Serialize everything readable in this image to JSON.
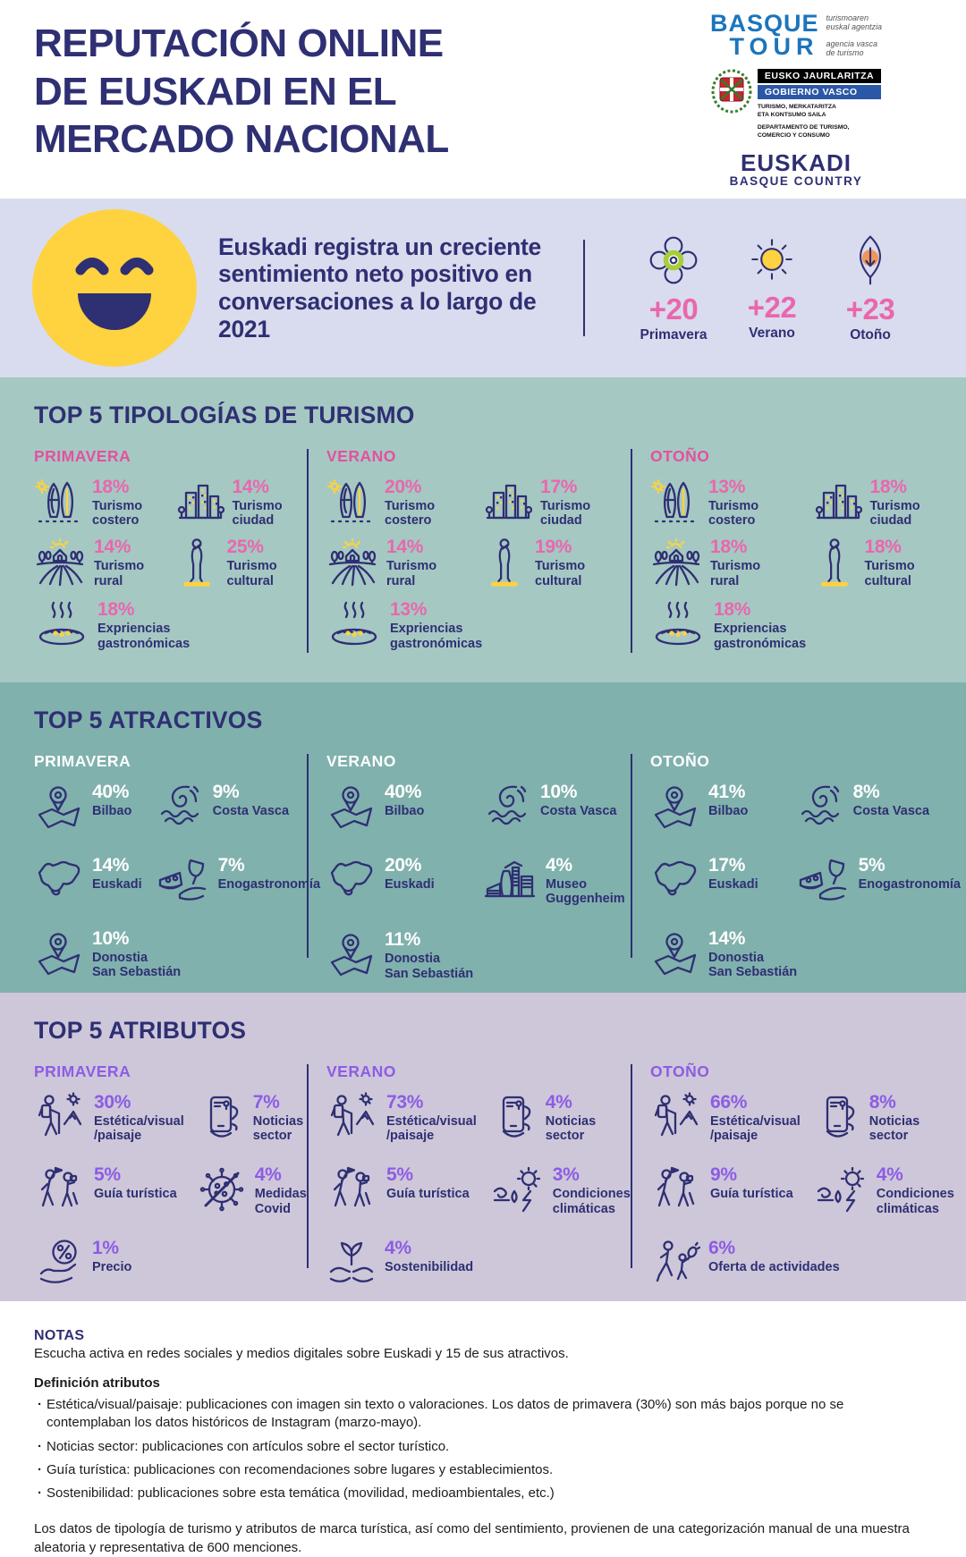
{
  "header": {
    "title": "REPUTACIÓN ONLINE\nDE EUSKADI EN EL\nMERCADO NACIONAL",
    "logos": {
      "basque_tour": {
        "line1": "BASQUE",
        "line2": "TOUR",
        "tagline_eu": "turismoaren\neuskal agentzia",
        "tagline_es": "agencia vasca\nde turismo"
      },
      "gobierno_vasco": {
        "bar1": "EUSKO JAURLARITZA",
        "bar2": "GOBIERNO VASCO",
        "dept_eu": "TURISMO, MERKATARITZA\nETA KONTSUMO SAILA",
        "dept_es": "DEPARTAMENTO DE TURISMO,\nCOMERCIO Y CONSUMO"
      },
      "euskadi": {
        "line1": "EUSKADI",
        "line2": "BASQUE COUNTRY"
      }
    }
  },
  "sentiment": {
    "message": "Euskadi registra un creciente sentimiento neto positivo en conversaciones a lo largo de 2021",
    "seasons": [
      {
        "icon": "flower-icon",
        "value": "+20",
        "label": "Primavera"
      },
      {
        "icon": "sun-icon",
        "value": "+22",
        "label": "Verano"
      },
      {
        "icon": "leaf-icon",
        "value": "+23",
        "label": "Otoño"
      }
    ]
  },
  "sections": [
    {
      "id": "tipologias",
      "title": "TOP 5 TIPOLOGÍAS DE TURISMO",
      "theme": "light-teal",
      "columns": [
        {
          "season": "PRIMAVERA",
          "items": [
            {
              "value": "18%",
              "label": "Turismo\ncostero",
              "icon": "surf-icon",
              "side": "left"
            },
            {
              "value": "14%",
              "label": "Turismo\nciudad",
              "icon": "city-icon",
              "side": "left"
            },
            {
              "value": "14%",
              "label": "Turismo\nrural",
              "icon": "farm-icon",
              "side": "left"
            },
            {
              "value": "25%",
              "label": "Turismo\ncultural",
              "icon": "statue-icon",
              "side": "left"
            },
            {
              "value": "18%",
              "label": "Expriencias\ngastronómicas",
              "icon": "gastronomy-icon",
              "side": "left",
              "wide": true
            }
          ]
        },
        {
          "season": "VERANO",
          "items": [
            {
              "value": "20%",
              "label": "Turismo\ncostero",
              "icon": "surf-icon",
              "side": "left"
            },
            {
              "value": "17%",
              "label": "Turismo\nciudad",
              "icon": "city-icon",
              "side": "left"
            },
            {
              "value": "14%",
              "label": "Turismo\nrural",
              "icon": "farm-icon",
              "side": "left"
            },
            {
              "value": "19%",
              "label": "Turismo\ncultural",
              "icon": "statue-icon",
              "side": "left"
            },
            {
              "value": "13%",
              "label": "Expriencias\ngastronómicas",
              "icon": "gastronomy-icon",
              "side": "left",
              "wide": true
            }
          ]
        },
        {
          "season": "OTOÑO",
          "items": [
            {
              "value": "13%",
              "label": "Turismo\ncostero",
              "icon": "surf-icon",
              "side": "left"
            },
            {
              "value": "18%",
              "label": "Turismo\nciudad",
              "icon": "city-icon",
              "side": "left"
            },
            {
              "value": "18%",
              "label": "Turismo\nrural",
              "icon": "farm-icon",
              "side": "left"
            },
            {
              "value": "18%",
              "label": "Turismo\ncultural",
              "icon": "statue-icon",
              "side": "left"
            },
            {
              "value": "18%",
              "label": "Expriencias\ngastronómicas",
              "icon": "gastronomy-icon",
              "side": "left",
              "wide": true
            }
          ]
        }
      ]
    },
    {
      "id": "atractivos",
      "title": "TOP 5 ATRACTIVOS",
      "theme": "dark-teal",
      "columns": [
        {
          "season": "PRIMAVERA",
          "items": [
            {
              "value": "40%",
              "label": "Bilbao",
              "icon": "map-pin-icon",
              "side": "left"
            },
            {
              "value": "9%",
              "label": "Costa Vasca",
              "icon": "wave-icon",
              "side": "right"
            },
            {
              "value": "14%",
              "label": "Euskadi",
              "icon": "euskadi-map-icon",
              "side": "left"
            },
            {
              "value": "7%",
              "label": "Enogastronomía",
              "icon": "wine-cheese-icon",
              "side": "right"
            },
            {
              "value": "10%",
              "label": "Donostia\nSan Sebastián",
              "icon": "map-pin-icon",
              "side": "left",
              "wide": true
            }
          ]
        },
        {
          "season": "VERANO",
          "items": [
            {
              "value": "40%",
              "label": "Bilbao",
              "icon": "map-pin-icon",
              "side": "left"
            },
            {
              "value": "10%",
              "label": "Costa Vasca",
              "icon": "wave-icon",
              "side": "right"
            },
            {
              "value": "20%",
              "label": "Euskadi",
              "icon": "euskadi-map-icon",
              "side": "left"
            },
            {
              "value": "4%",
              "label": "Museo\nGuggenheim",
              "icon": "guggenheim-icon",
              "side": "right"
            },
            {
              "value": "11%",
              "label": "Donostia\nSan Sebastián",
              "icon": "map-pin-icon",
              "side": "left",
              "wide": true
            }
          ]
        },
        {
          "season": "OTOÑO",
          "items": [
            {
              "value": "41%",
              "label": "Bilbao",
              "icon": "map-pin-icon",
              "side": "left"
            },
            {
              "value": "8%",
              "label": "Costa Vasca",
              "icon": "wave-icon",
              "side": "right"
            },
            {
              "value": "17%",
              "label": "Euskadi",
              "icon": "euskadi-map-icon",
              "side": "left"
            },
            {
              "value": "5%",
              "label": "Enogastronomía",
              "icon": "wine-cheese-icon",
              "side": "right"
            },
            {
              "value": "14%",
              "label": "Donostia\nSan Sebastián",
              "icon": "map-pin-icon",
              "side": "left",
              "wide": true
            }
          ]
        }
      ]
    },
    {
      "id": "atributos",
      "title": "TOP 5 ATRIBUTOS",
      "theme": "purple",
      "columns": [
        {
          "season": "PRIMAVERA",
          "items": [
            {
              "value": "30%",
              "label": "Estética/visual\n/paisaje",
              "icon": "hiker-icon",
              "side": "right"
            },
            {
              "value": "7%",
              "label": "Noticias sector",
              "icon": "phone-icon",
              "side": "right"
            },
            {
              "value": "5%",
              "label": "Guía turística",
              "icon": "guide-icon",
              "side": "right"
            },
            {
              "value": "4%",
              "label": "Medidas Covid",
              "icon": "covid-icon",
              "side": "right"
            },
            {
              "value": "1%",
              "label": "Precio",
              "icon": "price-icon",
              "side": "right",
              "wide": true
            }
          ]
        },
        {
          "season": "VERANO",
          "items": [
            {
              "value": "73%",
              "label": "Estética/visual\n/paisaje",
              "icon": "hiker-icon",
              "side": "right"
            },
            {
              "value": "4%",
              "label": "Noticias sector",
              "icon": "phone-icon",
              "side": "right"
            },
            {
              "value": "5%",
              "label": "Guía turística",
              "icon": "guide-icon",
              "side": "right"
            },
            {
              "value": "3%",
              "label": "Condiciones\nclimáticas",
              "icon": "climate-icon",
              "side": "right"
            },
            {
              "value": "4%",
              "label": "Sostenibilidad",
              "icon": "sustainability-icon",
              "side": "right",
              "wide": true
            }
          ]
        },
        {
          "season": "OTOÑO",
          "items": [
            {
              "value": "66%",
              "label": "Estética/visual\n/paisaje",
              "icon": "hiker-icon",
              "side": "right"
            },
            {
              "value": "8%",
              "label": "Noticias sector",
              "icon": "phone-icon",
              "side": "right"
            },
            {
              "value": "9%",
              "label": "Guía turística",
              "icon": "guide-icon",
              "side": "right"
            },
            {
              "value": "4%",
              "label": "Condiciones\nclimáticas",
              "icon": "climate-icon",
              "side": "right"
            },
            {
              "value": "6%",
              "label": "Oferta de actividades",
              "icon": "activities-icon",
              "side": "right",
              "wide": true
            }
          ]
        }
      ]
    }
  ],
  "notes": {
    "title": "NOTAS",
    "intro": "Escucha activa en redes sociales y medios digitales sobre Euskadi y 15 de sus atractivos.",
    "definitions_title": "Definición atributos",
    "definitions": [
      "Estética/visual/paisaje: publicaciones con imagen sin texto o valoraciones. Los datos de primavera (30%) son más bajos porque no se contemplaban los datos históricos de Instagram (marzo-mayo).",
      "Noticias sector: publicaciones con artículos sobre el sector turístico.",
      "Guía turística: publicaciones con recomendaciones sobre lugares y establecimientos.",
      "Sostenibilidad: publicaciones sobre esta temática (movilidad, medioambientales, etc.)"
    ],
    "footer": "Los datos de tipología de turismo y atributos de marca turística, así como del sentimiento, provienen de una categorización manual de una muestra aleatoria y representativa de 600 menciones."
  },
  "colors": {
    "navy": "#2f2f73",
    "pink": "#e967ae",
    "purple": "#8d5ce4",
    "teal_light": "#a5c8c2",
    "teal_dark": "#80b1ad",
    "purple_bg": "#cdc7d9",
    "band_bg": "#d9dcee",
    "yellow": "#ffd23f",
    "logo_blue": "#1c75bc"
  },
  "chart_data": [
    {
      "type": "bar",
      "title": "Sentimiento neto positivo en conversaciones 2021",
      "categories": [
        "Primavera",
        "Verano",
        "Otoño"
      ],
      "values": [
        20,
        22,
        23
      ]
    },
    {
      "type": "bar",
      "title": "Top 5 tipologías de turismo (%)",
      "categories": [
        "Turismo costero",
        "Turismo ciudad",
        "Turismo rural",
        "Turismo cultural",
        "Expriencias gastronómicas"
      ],
      "series": [
        {
          "name": "Primavera",
          "values": [
            18,
            14,
            14,
            25,
            18
          ]
        },
        {
          "name": "Verano",
          "values": [
            20,
            17,
            14,
            19,
            13
          ]
        },
        {
          "name": "Otoño",
          "values": [
            13,
            18,
            18,
            18,
            18
          ]
        }
      ]
    },
    {
      "type": "bar",
      "title": "Top 5 atractivos (%)",
      "categories": [
        "Bilbao",
        "Costa Vasca",
        "Euskadi",
        "Enogastronomía",
        "Museo Guggenheim",
        "Donostia San Sebastián"
      ],
      "series": [
        {
          "name": "Primavera",
          "values": [
            40,
            9,
            14,
            7,
            null,
            10
          ]
        },
        {
          "name": "Verano",
          "values": [
            40,
            10,
            20,
            null,
            4,
            11
          ]
        },
        {
          "name": "Otoño",
          "values": [
            41,
            8,
            17,
            5,
            null,
            14
          ]
        }
      ]
    },
    {
      "type": "bar",
      "title": "Top 5 atributos (%)",
      "categories": [
        "Estética/visual/paisaje",
        "Noticias sector",
        "Guía turística",
        "Medidas Covid",
        "Condiciones climáticas",
        "Sostenibilidad",
        "Precio",
        "Oferta de actividades"
      ],
      "series": [
        {
          "name": "Primavera",
          "values": [
            30,
            7,
            5,
            4,
            null,
            null,
            1,
            null
          ]
        },
        {
          "name": "Verano",
          "values": [
            73,
            4,
            5,
            null,
            3,
            4,
            null,
            null
          ]
        },
        {
          "name": "Otoño",
          "values": [
            66,
            8,
            9,
            null,
            4,
            null,
            null,
            6
          ]
        }
      ]
    }
  ]
}
